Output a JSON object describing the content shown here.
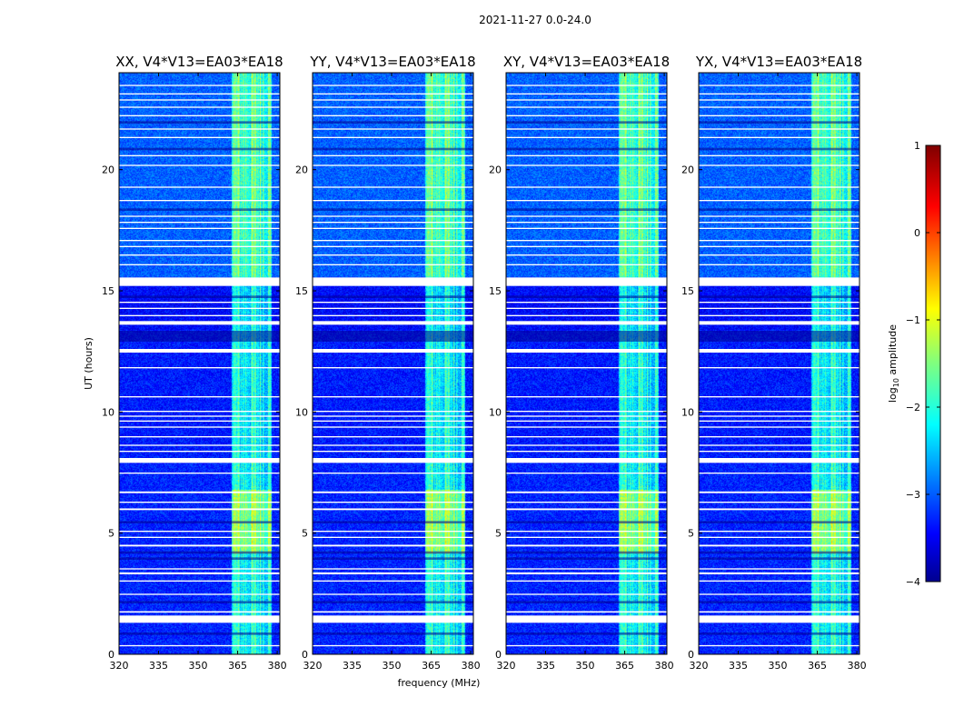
{
  "chart_data": {
    "type": "heatmap",
    "suptitle": "2021-11-27 0.0-24.0",
    "xlabel": "frequency (MHz)",
    "ylabel": "UT (hours)",
    "xlim": [
      320,
      381
    ],
    "ylim": [
      0,
      24
    ],
    "xticks": [
      320,
      335,
      350,
      365,
      380
    ],
    "yticks": [
      0,
      5,
      10,
      15,
      20
    ],
    "colorbar": {
      "label_main": "log",
      "label_sub": "10",
      "label_tail": " amplitude",
      "ticks": [
        1,
        0,
        -1,
        -2,
        -3,
        -4
      ],
      "range": [
        -4,
        1
      ],
      "colormap": "jet"
    },
    "panels": [
      {
        "title": "XX, V4*V13=EA03*EA18",
        "pol": "XX"
      },
      {
        "title": "YY, V4*V13=EA03*EA18",
        "pol": "YY"
      },
      {
        "title": "XY, V4*V13=EA03*EA18",
        "pol": "XY"
      },
      {
        "title": "YX, V4*V13=EA03*EA18",
        "pol": "YX"
      }
    ],
    "rfi_bands_mhz": [
      [
        362.5,
        381
      ]
    ],
    "flagged_hours": [
      [
        0.33,
        0.38
      ],
      [
        1.3,
        1.6
      ],
      [
        1.72,
        1.78
      ],
      [
        2.45,
        2.5
      ],
      [
        3.0,
        3.05
      ],
      [
        3.3,
        3.38
      ],
      [
        3.5,
        3.55
      ],
      [
        4.45,
        4.52
      ],
      [
        4.8,
        4.85
      ],
      [
        5.05,
        5.1
      ],
      [
        5.95,
        6.02
      ],
      [
        6.25,
        6.3
      ],
      [
        6.65,
        6.72
      ],
      [
        7.45,
        7.5
      ],
      [
        7.9,
        8.1
      ],
      [
        8.35,
        8.4
      ],
      [
        8.6,
        8.65
      ],
      [
        8.95,
        9.0
      ],
      [
        9.35,
        9.4
      ],
      [
        9.6,
        9.65
      ],
      [
        9.8,
        9.85
      ],
      [
        10.0,
        10.05
      ],
      [
        10.6,
        10.65
      ],
      [
        11.8,
        11.85
      ],
      [
        12.45,
        12.6
      ],
      [
        13.6,
        13.75
      ],
      [
        13.95,
        14.0
      ],
      [
        14.25,
        14.3
      ],
      [
        14.5,
        14.55
      ],
      [
        15.2,
        15.55
      ],
      [
        16.05,
        16.1
      ],
      [
        16.45,
        16.5
      ],
      [
        16.8,
        16.85
      ],
      [
        17.05,
        17.1
      ],
      [
        17.55,
        17.6
      ],
      [
        17.8,
        17.85
      ],
      [
        18.05,
        18.1
      ],
      [
        18.7,
        18.75
      ],
      [
        19.25,
        19.3
      ],
      [
        20.15,
        20.2
      ],
      [
        20.55,
        20.6
      ],
      [
        21.3,
        21.35
      ],
      [
        21.65,
        21.7
      ],
      [
        22.2,
        22.25
      ],
      [
        22.55,
        22.6
      ],
      [
        22.85,
        22.9
      ],
      [
        23.1,
        23.15
      ],
      [
        23.45,
        23.5
      ]
    ],
    "dark_rows_hours": [
      [
        0.8,
        0.9
      ],
      [
        2.1,
        2.2
      ],
      [
        3.9,
        4.0
      ],
      [
        4.15,
        4.25
      ],
      [
        5.4,
        5.5
      ],
      [
        12.9,
        13.35
      ],
      [
        14.7,
        14.8
      ],
      [
        18.3,
        18.4
      ],
      [
        20.8,
        20.9
      ],
      [
        21.9,
        22.0
      ]
    ]
  }
}
